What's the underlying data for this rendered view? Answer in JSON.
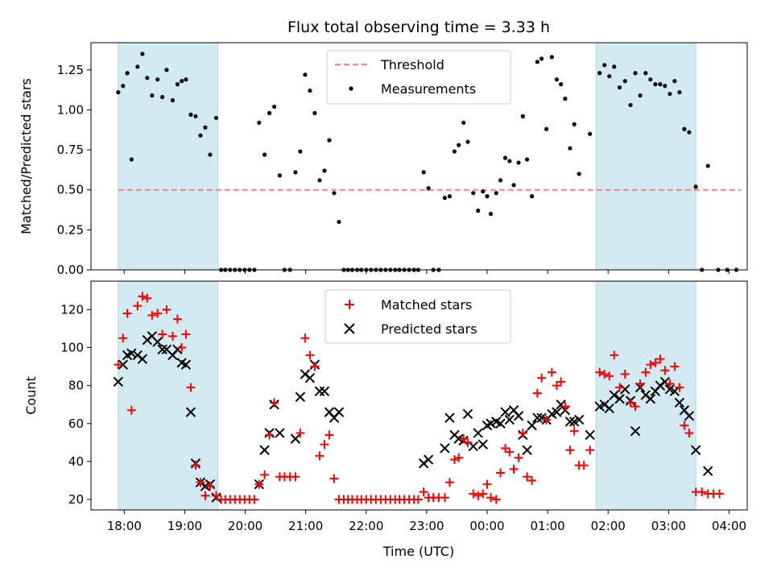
{
  "chart_data": {
    "title": "Flux total observing time = 3.33 h",
    "xlabel": "Time (UTC)",
    "x_tick_labels": [
      "18:00",
      "19:00",
      "20:00",
      "21:00",
      "22:00",
      "23:00",
      "00:00",
      "01:00",
      "02:00",
      "03:00",
      "04:00"
    ],
    "x_range_hours": [
      17.45,
      28.3
    ],
    "shaded_regions": [
      [
        17.9,
        19.55
      ],
      [
        25.8,
        27.45
      ]
    ],
    "colors": {
      "shade": "#add8e6",
      "threshold": "#ff7f7f",
      "measurements": "#000000",
      "matched": "#ff0000",
      "predicted": "#000000"
    },
    "top_panel": {
      "type": "scatter",
      "ylabel": "Matched/Predicted stars",
      "ylim": [
        0,
        1.42
      ],
      "y_tick_labels": [
        "0.00",
        "0.25",
        "0.50",
        "0.75",
        "1.00",
        "1.25"
      ],
      "threshold": 0.5,
      "threshold_x_range": [
        17.9,
        28.2
      ],
      "legend": [
        "Threshold",
        "Measurements"
      ],
      "points": [
        [
          17.9,
          1.11
        ],
        [
          17.98,
          1.15
        ],
        [
          18.05,
          1.23
        ],
        [
          18.12,
          0.69
        ],
        [
          18.22,
          1.27
        ],
        [
          18.3,
          1.35
        ],
        [
          18.38,
          1.2
        ],
        [
          18.46,
          1.09
        ],
        [
          18.55,
          1.19
        ],
        [
          18.63,
          1.08
        ],
        [
          18.7,
          1.25
        ],
        [
          18.8,
          1.06
        ],
        [
          18.88,
          1.16
        ],
        [
          18.95,
          1.18
        ],
        [
          19.02,
          1.19
        ],
        [
          19.1,
          0.97
        ],
        [
          19.18,
          0.96
        ],
        [
          19.26,
          0.84
        ],
        [
          19.34,
          0.89
        ],
        [
          19.42,
          0.72
        ],
        [
          19.52,
          0.95
        ],
        [
          19.6,
          0
        ],
        [
          19.67,
          0
        ],
        [
          19.75,
          0
        ],
        [
          19.83,
          0
        ],
        [
          19.91,
          0
        ],
        [
          19.99,
          0
        ],
        [
          20.07,
          0
        ],
        [
          20.15,
          0
        ],
        [
          20.23,
          0.92
        ],
        [
          20.32,
          0.72
        ],
        [
          20.4,
          0.98
        ],
        [
          20.48,
          1.02
        ],
        [
          20.57,
          0.59
        ],
        [
          20.65,
          0
        ],
        [
          20.74,
          0
        ],
        [
          20.83,
          0.61
        ],
        [
          20.91,
          0.74
        ],
        [
          20.99,
          1.22
        ],
        [
          21.07,
          1.12
        ],
        [
          21.15,
          0.98
        ],
        [
          21.23,
          0.56
        ],
        [
          21.31,
          0.62
        ],
        [
          21.39,
          0.81
        ],
        [
          21.47,
          0.48
        ],
        [
          21.55,
          0.3
        ],
        [
          21.63,
          0
        ],
        [
          21.7,
          0
        ],
        [
          21.77,
          0
        ],
        [
          21.85,
          0
        ],
        [
          21.92,
          0
        ],
        [
          22.0,
          0
        ],
        [
          22.08,
          0
        ],
        [
          22.16,
          0
        ],
        [
          22.24,
          0
        ],
        [
          22.32,
          0
        ],
        [
          22.4,
          0
        ],
        [
          22.48,
          0
        ],
        [
          22.55,
          0
        ],
        [
          22.63,
          0
        ],
        [
          22.71,
          0
        ],
        [
          22.79,
          0
        ],
        [
          22.86,
          0
        ],
        [
          22.95,
          0.61
        ],
        [
          23.03,
          0.51
        ],
        [
          23.11,
          0
        ],
        [
          23.2,
          0
        ],
        [
          23.3,
          0.45
        ],
        [
          23.38,
          0.46
        ],
        [
          23.46,
          0.74
        ],
        [
          23.53,
          0.78
        ],
        [
          23.61,
          0.92
        ],
        [
          23.68,
          0.8
        ],
        [
          23.77,
          0.48
        ],
        [
          23.85,
          0.37
        ],
        [
          23.93,
          0.49
        ],
        [
          24.0,
          0.46
        ],
        [
          24.06,
          0.35
        ],
        [
          24.15,
          0.48
        ],
        [
          24.22,
          0.56
        ],
        [
          24.3,
          0.7
        ],
        [
          24.37,
          0.68
        ],
        [
          24.44,
          0.53
        ],
        [
          24.52,
          0.67
        ],
        [
          24.59,
          0.96
        ],
        [
          24.66,
          0.69
        ],
        [
          24.74,
          0.46
        ],
        [
          24.83,
          1.3
        ],
        [
          24.9,
          1.32
        ],
        [
          24.98,
          0.88
        ],
        [
          25.07,
          1.33
        ],
        [
          25.15,
          1.19
        ],
        [
          25.22,
          1.16
        ],
        [
          25.29,
          1.07
        ],
        [
          25.37,
          0.76
        ],
        [
          25.44,
          0.91
        ],
        [
          25.52,
          0.6
        ],
        [
          25.7,
          0.85
        ],
        [
          25.86,
          1.23
        ],
        [
          25.94,
          1.28
        ],
        [
          26.02,
          1.21
        ],
        [
          26.1,
          1.27
        ],
        [
          26.19,
          1.14
        ],
        [
          26.28,
          1.18
        ],
        [
          26.37,
          1.03
        ],
        [
          26.45,
          1.23
        ],
        [
          26.53,
          1.09
        ],
        [
          26.62,
          1.23
        ],
        [
          26.7,
          1.19
        ],
        [
          26.78,
          1.16
        ],
        [
          26.86,
          1.16
        ],
        [
          26.94,
          1.15
        ],
        [
          27.02,
          1.1
        ],
        [
          27.1,
          1.18
        ],
        [
          27.18,
          1.11
        ],
        [
          27.26,
          0.88
        ],
        [
          27.34,
          0.86
        ],
        [
          27.45,
          0.52
        ],
        [
          27.55,
          0
        ],
        [
          27.65,
          0.65
        ],
        [
          27.82,
          0
        ],
        [
          27.97,
          0
        ],
        [
          28.12,
          0
        ]
      ]
    },
    "bottom_panel": {
      "type": "scatter",
      "ylabel": "Count",
      "ylim": [
        14.5,
        135
      ],
      "y_tick_labels": [
        "20",
        "40",
        "60",
        "80",
        "100",
        "120"
      ],
      "legend": [
        "Matched stars",
        "Predicted stars"
      ],
      "matched": [
        [
          17.9,
          91
        ],
        [
          17.98,
          105
        ],
        [
          18.05,
          118
        ],
        [
          18.12,
          67
        ],
        [
          18.22,
          122
        ],
        [
          18.3,
          127
        ],
        [
          18.38,
          126
        ],
        [
          18.46,
          117
        ],
        [
          18.55,
          118
        ],
        [
          18.63,
          107
        ],
        [
          18.7,
          120
        ],
        [
          18.8,
          106
        ],
        [
          18.88,
          115
        ],
        [
          18.95,
          100
        ],
        [
          19.02,
          107
        ],
        [
          19.1,
          79
        ],
        [
          19.18,
          38
        ],
        [
          19.26,
          29
        ],
        [
          19.34,
          22
        ],
        [
          19.42,
          27
        ],
        [
          19.52,
          22
        ],
        [
          19.6,
          20
        ],
        [
          19.67,
          20
        ],
        [
          19.75,
          20
        ],
        [
          19.83,
          20
        ],
        [
          19.91,
          20
        ],
        [
          19.99,
          20
        ],
        [
          20.07,
          20
        ],
        [
          20.15,
          20
        ],
        [
          20.23,
          28
        ],
        [
          20.32,
          33
        ],
        [
          20.4,
          54
        ],
        [
          20.48,
          71
        ],
        [
          20.57,
          32
        ],
        [
          20.65,
          32
        ],
        [
          20.74,
          32
        ],
        [
          20.83,
          32
        ],
        [
          20.91,
          55
        ],
        [
          20.99,
          105
        ],
        [
          21.07,
          96
        ],
        [
          21.15,
          90
        ],
        [
          21.23,
          43
        ],
        [
          21.31,
          49
        ],
        [
          21.39,
          54
        ],
        [
          21.47,
          31
        ],
        [
          21.55,
          20
        ],
        [
          21.63,
          20
        ],
        [
          21.7,
          20
        ],
        [
          21.77,
          20
        ],
        [
          21.85,
          20
        ],
        [
          21.92,
          20
        ],
        [
          22.0,
          20
        ],
        [
          22.08,
          20
        ],
        [
          22.16,
          20
        ],
        [
          22.24,
          20
        ],
        [
          22.32,
          20
        ],
        [
          22.4,
          20
        ],
        [
          22.48,
          20
        ],
        [
          22.55,
          20
        ],
        [
          22.63,
          20
        ],
        [
          22.71,
          20
        ],
        [
          22.79,
          20
        ],
        [
          22.86,
          20
        ],
        [
          22.95,
          24
        ],
        [
          23.03,
          21
        ],
        [
          23.11,
          21
        ],
        [
          23.2,
          21
        ],
        [
          23.3,
          21
        ],
        [
          23.38,
          29
        ],
        [
          23.46,
          41
        ],
        [
          23.53,
          42
        ],
        [
          23.61,
          52
        ],
        [
          23.68,
          50
        ],
        [
          23.77,
          23
        ],
        [
          23.85,
          22
        ],
        [
          23.93,
          23
        ],
        [
          24.0,
          28
        ],
        [
          24.06,
          21
        ],
        [
          24.15,
          20
        ],
        [
          24.22,
          34
        ],
        [
          24.3,
          47
        ],
        [
          24.37,
          45
        ],
        [
          24.44,
          36
        ],
        [
          24.52,
          42
        ],
        [
          24.59,
          55
        ],
        [
          24.66,
          32
        ],
        [
          24.74,
          30
        ],
        [
          24.83,
          76
        ],
        [
          24.9,
          84
        ],
        [
          24.98,
          62
        ],
        [
          25.07,
          87
        ],
        [
          25.15,
          80
        ],
        [
          25.22,
          82
        ],
        [
          25.29,
          69
        ],
        [
          25.37,
          46
        ],
        [
          25.44,
          56
        ],
        [
          25.52,
          38
        ],
        [
          25.6,
          38
        ],
        [
          25.7,
          46
        ],
        [
          25.86,
          87
        ],
        [
          25.94,
          86
        ],
        [
          26.02,
          85
        ],
        [
          26.1,
          96
        ],
        [
          26.19,
          79
        ],
        [
          26.28,
          86
        ],
        [
          26.37,
          71
        ],
        [
          26.45,
          69
        ],
        [
          26.53,
          81
        ],
        [
          26.62,
          87
        ],
        [
          26.7,
          91
        ],
        [
          26.78,
          92
        ],
        [
          26.86,
          94
        ],
        [
          26.94,
          88
        ],
        [
          27.02,
          81
        ],
        [
          27.1,
          90
        ],
        [
          27.18,
          79
        ],
        [
          27.26,
          59
        ],
        [
          27.34,
          55
        ],
        [
          27.45,
          24
        ],
        [
          27.55,
          24
        ],
        [
          27.65,
          23
        ],
        [
          27.74,
          23
        ],
        [
          27.84,
          23
        ]
      ],
      "predicted": [
        [
          17.9,
          82
        ],
        [
          17.98,
          91
        ],
        [
          18.05,
          96
        ],
        [
          18.12,
          97
        ],
        [
          18.22,
          96
        ],
        [
          18.3,
          94
        ],
        [
          18.38,
          104
        ],
        [
          18.46,
          106
        ],
        [
          18.55,
          103
        ],
        [
          18.63,
          99
        ],
        [
          18.7,
          99
        ],
        [
          18.8,
          96
        ],
        [
          18.88,
          99
        ],
        [
          18.95,
          92
        ],
        [
          19.02,
          91
        ],
        [
          19.1,
          66
        ],
        [
          19.18,
          39
        ],
        [
          19.26,
          29
        ],
        [
          19.34,
          27
        ],
        [
          19.42,
          28
        ],
        [
          19.52,
          21
        ],
        [
          20.23,
          28
        ],
        [
          20.32,
          46
        ],
        [
          20.4,
          55
        ],
        [
          20.48,
          70
        ],
        [
          20.57,
          55
        ],
        [
          20.83,
          52
        ],
        [
          20.91,
          74
        ],
        [
          20.99,
          86
        ],
        [
          21.07,
          84
        ],
        [
          21.15,
          91
        ],
        [
          21.23,
          77
        ],
        [
          21.31,
          77
        ],
        [
          21.39,
          66
        ],
        [
          21.47,
          63
        ],
        [
          21.55,
          66
        ],
        [
          22.95,
          39
        ],
        [
          23.03,
          41
        ],
        [
          23.3,
          47
        ],
        [
          23.38,
          63
        ],
        [
          23.46,
          54
        ],
        [
          23.53,
          52
        ],
        [
          23.61,
          51
        ],
        [
          23.68,
          65
        ],
        [
          23.77,
          48
        ],
        [
          23.85,
          55
        ],
        [
          23.93,
          49
        ],
        [
          24.0,
          59
        ],
        [
          24.06,
          60
        ],
        [
          24.15,
          61
        ],
        [
          24.22,
          60
        ],
        [
          24.3,
          66
        ],
        [
          24.37,
          62
        ],
        [
          24.44,
          67
        ],
        [
          24.52,
          64
        ],
        [
          24.59,
          54
        ],
        [
          24.66,
          46
        ],
        [
          24.74,
          59
        ],
        [
          24.83,
          63
        ],
        [
          24.9,
          63
        ],
        [
          24.98,
          62
        ],
        [
          25.07,
          65
        ],
        [
          25.15,
          66
        ],
        [
          25.22,
          70
        ],
        [
          25.29,
          67
        ],
        [
          25.37,
          61
        ],
        [
          25.44,
          61
        ],
        [
          25.52,
          62
        ],
        [
          25.7,
          54
        ],
        [
          25.86,
          69
        ],
        [
          25.94,
          70
        ],
        [
          26.02,
          68
        ],
        [
          26.1,
          75
        ],
        [
          26.19,
          73
        ],
        [
          26.28,
          78
        ],
        [
          26.37,
          72
        ],
        [
          26.45,
          56
        ],
        [
          26.53,
          79
        ],
        [
          26.62,
          75
        ],
        [
          26.7,
          73
        ],
        [
          26.78,
          77
        ],
        [
          26.86,
          80
        ],
        [
          26.94,
          82
        ],
        [
          27.02,
          78
        ],
        [
          27.1,
          77
        ],
        [
          27.18,
          71
        ],
        [
          27.26,
          67
        ],
        [
          27.34,
          64
        ],
        [
          27.45,
          46
        ],
        [
          27.65,
          35
        ]
      ]
    }
  }
}
